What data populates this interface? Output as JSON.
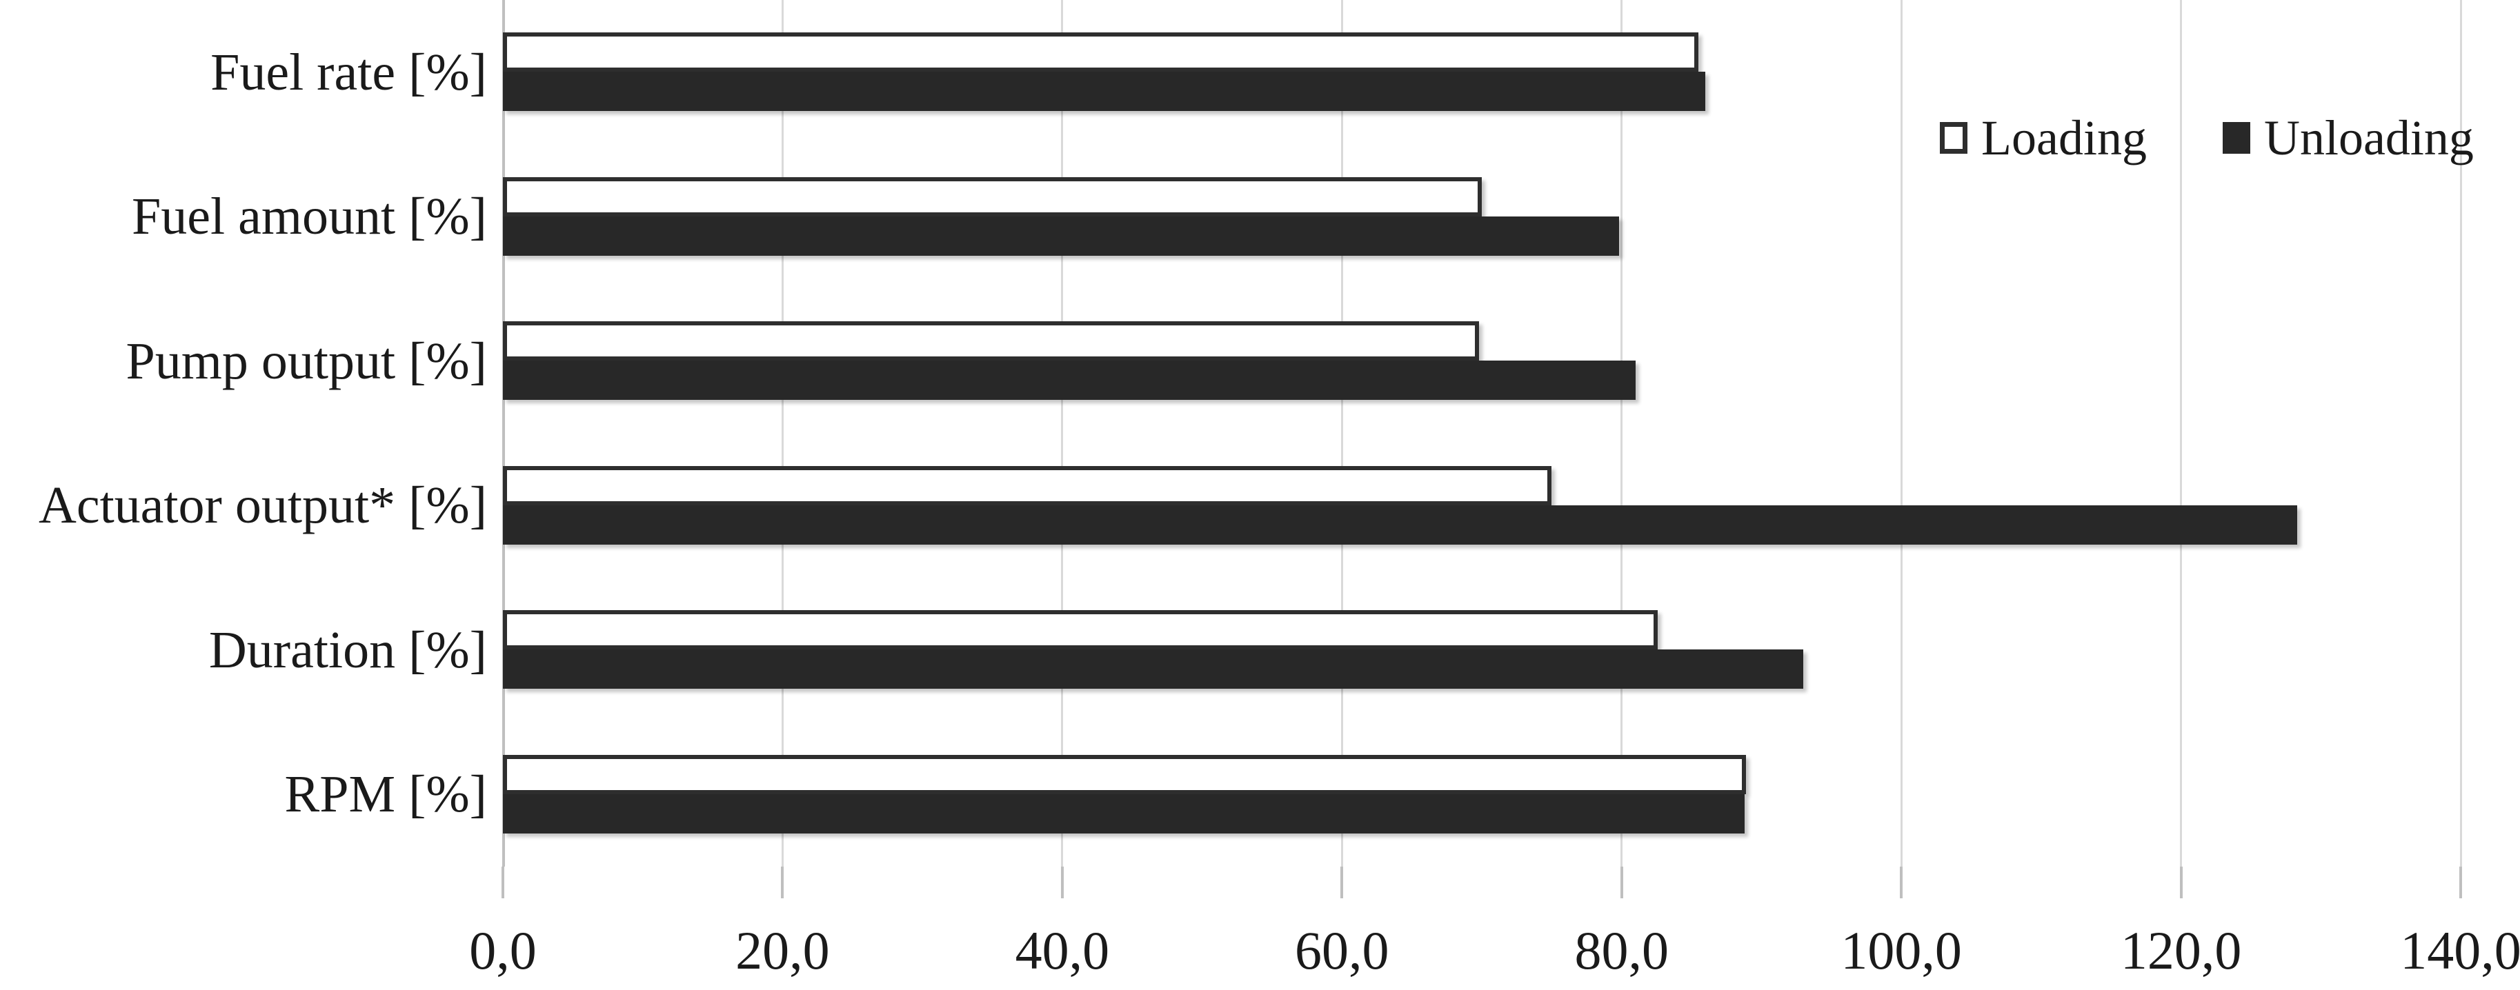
{
  "chart_data": {
    "type": "bar",
    "orientation": "horizontal",
    "title": "",
    "xlabel": "",
    "ylabel": "",
    "categories": [
      "Fuel rate [%]",
      "Fuel amount [%]",
      "Pump output [%]",
      "Actuator output* [%]",
      "Duration [%]",
      "RPM [%]"
    ],
    "series": [
      {
        "name": "Loading",
        "style": "hollow",
        "fill": "#ffffff",
        "border_color": "#2e2e2e",
        "values": [
          85.5,
          70.0,
          69.8,
          75.0,
          82.6,
          88.9
        ]
      },
      {
        "name": "Unloading",
        "style": "filled",
        "fill": "#282828",
        "values": [
          86.0,
          79.8,
          81.0,
          128.3,
          93.0,
          88.8
        ]
      }
    ],
    "x_axis": {
      "min": 0,
      "max": 140,
      "tick_step": 20,
      "tick_labels": [
        "0,0",
        "20,0",
        "40,0",
        "60,0",
        "80,0",
        "100,0",
        "120,0",
        "140,0"
      ],
      "decimal_separator": ","
    },
    "grid": true,
    "legend_position": "top-right",
    "colors": {
      "gridline": "#d9d9d9",
      "axis_line": "#bfbfbf",
      "text": "#1a1a1a",
      "bar_dark": "#282828",
      "bar_light": "#ffffff"
    }
  }
}
